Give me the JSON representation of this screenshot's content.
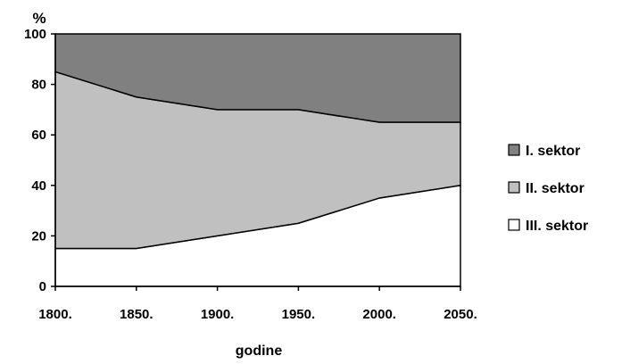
{
  "chart_data": {
    "type": "area",
    "stacked": true,
    "x": [
      "1800.",
      "1850.",
      "1900.",
      "1950.",
      "2000.",
      "2050."
    ],
    "series": [
      {
        "name": "III. sektor",
        "values": [
          15,
          15,
          20,
          25,
          35,
          40
        ],
        "color": "#ffffff"
      },
      {
        "name": "II. sektor",
        "values": [
          70,
          60,
          50,
          45,
          30,
          25
        ],
        "color": "#c0c0c0"
      },
      {
        "name": "I. sektor",
        "values": [
          15,
          25,
          30,
          30,
          35,
          35
        ],
        "color": "#808080"
      }
    ],
    "legend_order": [
      "I. sektor",
      "II. sektor",
      "III. sektor"
    ],
    "legend_position": "right",
    "ylabel": "%",
    "xlabel": "godine",
    "ylim": [
      0,
      100
    ],
    "yticks": [
      0,
      20,
      40,
      60,
      80,
      100
    ],
    "grid": false
  }
}
